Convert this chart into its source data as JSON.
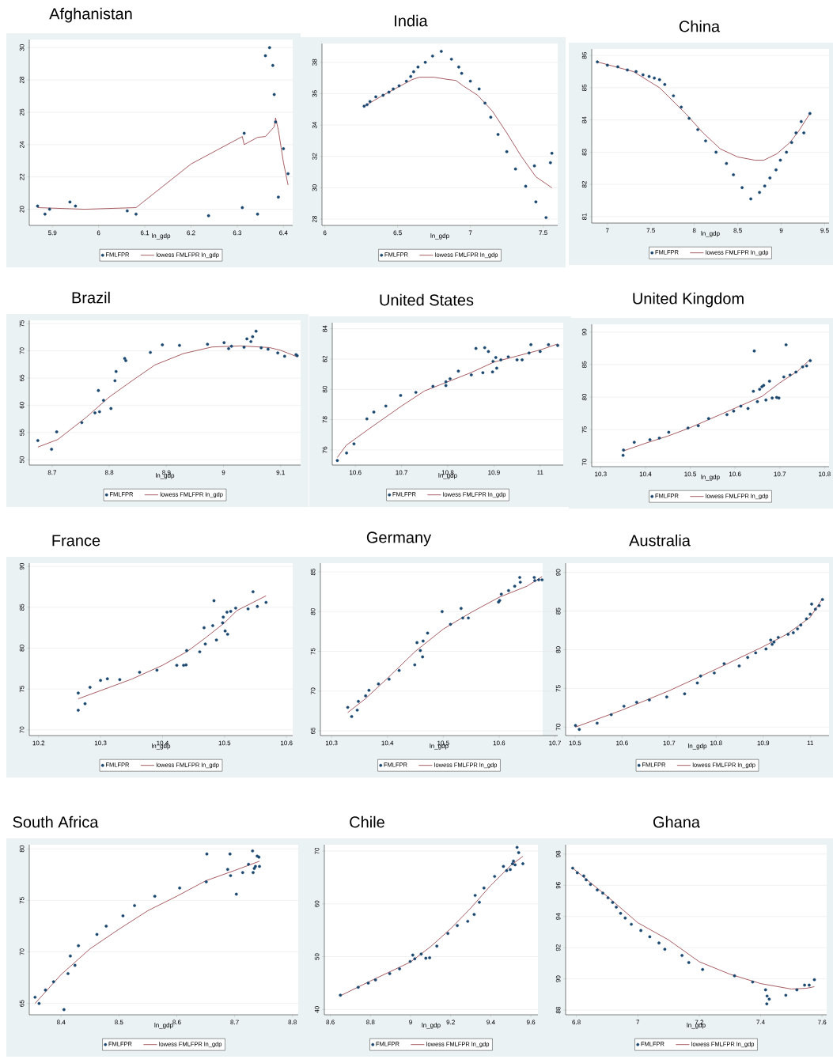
{
  "chart_data": [
    {
      "type": "scatter",
      "title": "Afghanistan",
      "xlabel": "ln_gdp",
      "xlim": [
        5.85,
        6.42
      ],
      "ylim": [
        19,
        30.5
      ],
      "xticks": [
        5.9,
        6,
        6.1,
        6.2,
        6.3,
        6.4
      ],
      "yticks": [
        20,
        22,
        24,
        26,
        28,
        30
      ],
      "grid": "y",
      "legend": "bottom",
      "series": [
        {
          "name": "FMLFPR",
          "type": "scatter",
          "marker": "circle",
          "color": "#1a476f",
          "x": [
            5.868,
            5.884,
            5.894,
            5.938,
            5.95,
            6.062,
            6.081,
            6.238,
            6.311,
            6.315,
            6.344,
            6.361,
            6.37,
            6.377,
            6.38,
            6.383,
            6.389,
            6.4,
            6.41
          ],
          "values": [
            20.2,
            19.7,
            20.0,
            20.45,
            20.2,
            19.9,
            19.7,
            19.6,
            20.1,
            24.7,
            19.7,
            29.5,
            30.0,
            28.9,
            27.1,
            25.4,
            20.75,
            23.75,
            22.2
          ]
        },
        {
          "name": "lowess FMLFPR ln_gdp",
          "type": "line",
          "marker": "none",
          "line_style": "solid",
          "color": "#90353b",
          "x": [
            5.868,
            5.97,
            6.081,
            6.2,
            6.311,
            6.315,
            6.344,
            6.361,
            6.38,
            6.383,
            6.389,
            6.4,
            6.41
          ],
          "values": [
            20.1,
            20.0,
            20.1,
            22.8,
            24.5,
            24.0,
            24.45,
            24.5,
            25.1,
            25.65,
            24.9,
            22.9,
            21.5
          ]
        }
      ]
    },
    {
      "type": "scatter",
      "title": "India",
      "xlabel": "ln_gdp",
      "xlim": [
        5.98,
        7.6
      ],
      "ylim": [
        27.6,
        39.2
      ],
      "xticks": [
        6,
        6.5,
        7,
        7.5
      ],
      "yticks": [
        28,
        30,
        32,
        34,
        36,
        38
      ],
      "grid": "y",
      "legend": "bottom",
      "series": [
        {
          "name": "FMLFPR",
          "type": "scatter",
          "marker": "circle",
          "color": "#1a476f",
          "x": [
            6.27,
            6.29,
            6.31,
            6.35,
            6.4,
            6.44,
            6.47,
            6.51,
            6.56,
            6.59,
            6.61,
            6.64,
            6.69,
            6.74,
            6.8,
            6.87,
            6.92,
            6.94,
            7.0,
            7.06,
            7.1,
            7.14,
            7.19,
            7.25,
            7.31,
            7.38,
            7.44,
            7.45,
            7.52,
            7.55,
            7.56
          ],
          "values": [
            35.2,
            35.3,
            35.5,
            35.8,
            35.9,
            36.1,
            36.3,
            36.5,
            36.8,
            37.1,
            37.4,
            37.7,
            38.0,
            38.4,
            38.7,
            38.2,
            37.7,
            37.3,
            36.8,
            36.3,
            35.4,
            34.5,
            33.4,
            32.3,
            31.2,
            30.1,
            31.4,
            29.1,
            28.1,
            31.6,
            32.2
          ]
        },
        {
          "name": "lowess FMLFPR ln_gdp",
          "type": "line",
          "marker": "none",
          "line_style": "solid",
          "color": "#90353b",
          "x": [
            6.27,
            6.4,
            6.5,
            6.6,
            6.65,
            6.75,
            6.85,
            6.9,
            6.95,
            7.05,
            7.15,
            7.25,
            7.35,
            7.45,
            7.56
          ],
          "values": [
            35.2,
            35.9,
            36.4,
            36.9,
            37.05,
            37.05,
            36.9,
            36.85,
            36.5,
            35.9,
            34.9,
            33.5,
            32.0,
            30.7,
            30.0
          ]
        }
      ]
    },
    {
      "type": "scatter",
      "title": "China",
      "xlabel": "ln_gdp",
      "xlim": [
        6.82,
        9.55
      ],
      "ylim": [
        80.8,
        86.2
      ],
      "xticks": [
        7,
        7.5,
        8,
        8.5,
        9,
        9.5
      ],
      "yticks": [
        81,
        82,
        83,
        84,
        85,
        86
      ],
      "grid": "y",
      "legend": "bottom",
      "series": [
        {
          "name": "FMLFPR",
          "type": "scatter",
          "marker": "circle",
          "color": "#1a476f",
          "x": [
            6.885,
            7.0,
            7.12,
            7.23,
            7.33,
            7.41,
            7.48,
            7.54,
            7.6,
            7.66,
            7.76,
            7.85,
            7.94,
            8.04,
            8.13,
            8.25,
            8.37,
            8.45,
            8.55,
            8.65,
            8.75,
            8.81,
            8.87,
            8.94,
            8.99,
            9.06,
            9.12,
            9.17,
            9.23,
            9.26,
            9.33
          ],
          "values": [
            85.8,
            85.7,
            85.65,
            85.55,
            85.5,
            85.4,
            85.35,
            85.3,
            85.25,
            85.1,
            84.75,
            84.4,
            84.05,
            83.7,
            83.35,
            83.0,
            82.65,
            82.3,
            81.9,
            81.55,
            81.75,
            81.95,
            82.2,
            82.45,
            82.75,
            83.0,
            83.3,
            83.6,
            83.95,
            83.6,
            84.2
          ]
        },
        {
          "name": "lowess FMLFPR ln_gdp",
          "type": "line",
          "marker": "none",
          "line_style": "solid",
          "color": "#90353b",
          "x": [
            6.885,
            7.3,
            7.6,
            7.9,
            8.1,
            8.3,
            8.5,
            8.7,
            8.8,
            8.95,
            9.1,
            9.2,
            9.33
          ],
          "values": [
            85.8,
            85.5,
            85.0,
            84.2,
            83.6,
            83.1,
            82.85,
            82.75,
            82.75,
            82.95,
            83.3,
            83.65,
            84.2
          ]
        }
      ]
    },
    {
      "type": "scatter",
      "title": "Brazil",
      "xlabel": "ln_gdp",
      "xlim": [
        8.66,
        9.135
      ],
      "ylim": [
        49,
        75.6
      ],
      "xticks": [
        8.7,
        8.8,
        8.9,
        9,
        9.1
      ],
      "yticks": [
        50,
        55,
        60,
        65,
        70,
        75
      ],
      "grid": "y",
      "legend": "bottom",
      "series": [
        {
          "name": "FMLFPR",
          "type": "scatter",
          "marker": "circle",
          "color": "#1a476f",
          "x": [
            8.675,
            8.699,
            8.708,
            8.752,
            8.775,
            8.781,
            8.783,
            8.79,
            8.803,
            8.81,
            8.812,
            8.827,
            8.829,
            8.872,
            8.893,
            8.923,
            8.972,
            9.001,
            9.009,
            9.014,
            9.036,
            9.041,
            9.048,
            9.051,
            9.057,
            9.066,
            9.078,
            9.095,
            9.107,
            9.127,
            9.129
          ],
          "values": [
            53.5,
            51.9,
            55.1,
            56.8,
            58.6,
            62.7,
            58.8,
            60.9,
            59.4,
            64.5,
            66.2,
            68.6,
            68.2,
            69.7,
            71.1,
            71.0,
            71.2,
            71.5,
            70.4,
            70.85,
            70.65,
            72.2,
            71.7,
            72.6,
            73.6,
            70.55,
            70.3,
            69.6,
            69.0,
            69.3,
            69.1
          ]
        },
        {
          "name": "lowess FMLFPR ln_gdp",
          "type": "line",
          "marker": "none",
          "line_style": "solid",
          "color": "#90353b",
          "x": [
            8.675,
            8.71,
            8.76,
            8.8,
            8.84,
            8.88,
            8.93,
            8.98,
            9.03,
            9.08,
            9.1,
            9.129
          ],
          "values": [
            52.3,
            53.7,
            57.8,
            61.5,
            64.5,
            67.4,
            69.5,
            70.7,
            70.9,
            70.6,
            70.1,
            68.9
          ]
        }
      ]
    },
    {
      "type": "scatter",
      "title": "United States",
      "xlabel": "ln_gdp",
      "xlim": [
        10.55,
        11.05
      ],
      "ylim": [
        75,
        84.4
      ],
      "xticks": [
        10.6,
        10.7,
        10.8,
        10.9,
        11
      ],
      "yticks": [
        76,
        78,
        80,
        82,
        84
      ],
      "grid": "y",
      "legend": "bottom",
      "series": [
        {
          "name": "FMLFPR",
          "type": "scatter",
          "marker": "circle",
          "color": "#1a476f",
          "x": [
            10.561,
            10.581,
            10.597,
            10.625,
            10.64,
            10.666,
            10.698,
            10.731,
            10.768,
            10.796,
            10.796,
            10.805,
            10.823,
            10.851,
            10.861,
            10.876,
            10.88,
            10.888,
            10.897,
            10.898,
            10.904,
            10.906,
            10.915,
            10.931,
            10.95,
            10.961,
            10.976,
            10.98,
            11.0,
            11.018,
            11.038
          ],
          "values": [
            75.3,
            75.8,
            76.4,
            78.05,
            78.5,
            78.9,
            79.6,
            79.8,
            80.2,
            80.5,
            80.25,
            80.7,
            81.2,
            80.95,
            82.7,
            81.1,
            82.75,
            82.5,
            81.15,
            81.85,
            82.1,
            81.4,
            81.95,
            82.15,
            81.95,
            81.95,
            82.4,
            82.95,
            82.5,
            82.95,
            82.9
          ]
        },
        {
          "name": "lowess FMLFPR ln_gdp",
          "type": "line",
          "marker": "none",
          "line_style": "solid",
          "color": "#90353b",
          "x": [
            10.561,
            10.58,
            10.63,
            10.7,
            10.75,
            10.8,
            10.85,
            10.9,
            10.95,
            11.0,
            11.038
          ],
          "values": [
            75.5,
            76.3,
            77.4,
            78.9,
            79.9,
            80.5,
            81.1,
            81.8,
            82.2,
            82.6,
            83.0
          ]
        }
      ]
    },
    {
      "type": "scatter",
      "title": "United Kingdom",
      "xlabel": "ln_gdp",
      "xlim": [
        10.28,
        10.81
      ],
      "ylim": [
        69.3,
        91.2
      ],
      "xticks": [
        10.3,
        10.4,
        10.5,
        10.6,
        10.7,
        10.8
      ],
      "yticks": [
        70,
        75,
        80,
        85,
        90
      ],
      "grid": "y",
      "legend": "bottom",
      "series": [
        {
          "name": "FMLFPR",
          "type": "scatter",
          "marker": "circle",
          "color": "#1a476f",
          "x": [
            10.35,
            10.351,
            10.375,
            10.41,
            10.431,
            10.452,
            10.495,
            10.518,
            10.541,
            10.582,
            10.597,
            10.613,
            10.629,
            10.641,
            10.643,
            10.65,
            10.655,
            10.66,
            10.664,
            10.669,
            10.677,
            10.683,
            10.693,
            10.698,
            10.709,
            10.714,
            10.723,
            10.736,
            10.751,
            10.76,
            10.768
          ],
          "values": [
            71.05,
            71.85,
            73.05,
            73.45,
            73.7,
            74.6,
            75.25,
            75.6,
            76.7,
            77.3,
            77.85,
            78.6,
            78.25,
            80.9,
            87.1,
            79.3,
            81.2,
            81.6,
            81.8,
            79.55,
            82.45,
            79.85,
            79.95,
            79.85,
            83.1,
            88.05,
            83.4,
            83.85,
            84.65,
            84.8,
            85.6
          ]
        },
        {
          "name": "lowess FMLFPR ln_gdp",
          "type": "line",
          "marker": "none",
          "line_style": "solid",
          "color": "#90353b",
          "x": [
            10.35,
            10.4,
            10.45,
            10.5,
            10.55,
            10.6,
            10.64,
            10.66,
            10.7,
            10.74,
            10.768
          ],
          "values": [
            71.7,
            72.9,
            74.0,
            75.3,
            76.8,
            78.3,
            79.5,
            80.1,
            82.2,
            84.0,
            85.8
          ]
        }
      ]
    },
    {
      "type": "scatter",
      "title": "France",
      "xlabel": "ln_gdp",
      "xlim": [
        10.185,
        10.61
      ],
      "ylim": [
        69.3,
        90.4
      ],
      "xticks": [
        10.2,
        10.3,
        10.4,
        10.5,
        10.6
      ],
      "yticks": [
        70,
        75,
        80,
        85,
        90
      ],
      "grid": "y",
      "legend": "bottom",
      "series": [
        {
          "name": "FMLFPR",
          "type": "scatter",
          "marker": "circle",
          "color": "#1a476f",
          "x": [
            10.264,
            10.264,
            10.275,
            10.283,
            10.3,
            10.311,
            10.331,
            10.363,
            10.391,
            10.423,
            10.434,
            10.438,
            10.439,
            10.46,
            10.467,
            10.469,
            10.481,
            10.483,
            10.487,
            10.497,
            10.498,
            10.501,
            10.505,
            10.504,
            10.51,
            10.518,
            10.538,
            10.546,
            10.553,
            10.567
          ],
          "values": [
            74.5,
            72.4,
            73.2,
            75.2,
            76.05,
            76.25,
            76.15,
            77.05,
            77.3,
            77.9,
            77.9,
            77.95,
            79.7,
            79.55,
            82.5,
            80.5,
            82.75,
            85.8,
            81.0,
            83.1,
            83.8,
            82.1,
            81.7,
            84.4,
            84.5,
            84.9,
            84.8,
            86.9,
            85.1,
            85.6
          ]
        },
        {
          "name": "lowess FMLFPR ln_gdp",
          "type": "line",
          "marker": "none",
          "line_style": "solid",
          "color": "#90353b",
          "x": [
            10.264,
            10.3,
            10.35,
            10.4,
            10.44,
            10.47,
            10.5,
            10.52,
            10.567
          ],
          "values": [
            73.8,
            74.8,
            76.2,
            77.9,
            79.6,
            81.3,
            83.1,
            84.6,
            86.4
          ]
        }
      ]
    },
    {
      "type": "scatter",
      "title": "Germany",
      "xlabel": "ln_gdp",
      "xlim": [
        10.28,
        10.705
      ],
      "ylim": [
        64.4,
        86.1
      ],
      "xticks": [
        10.3,
        10.4,
        10.5,
        10.6,
        10.7
      ],
      "yticks": [
        65,
        70,
        75,
        80,
        85
      ],
      "grid": "y",
      "legend": "bottom",
      "series": [
        {
          "name": "FMLFPR",
          "type": "scatter",
          "marker": "circle",
          "color": "#1a476f",
          "x": [
            10.329,
            10.336,
            10.346,
            10.348,
            10.361,
            10.367,
            10.384,
            10.403,
            10.421,
            10.449,
            10.453,
            10.459,
            10.463,
            10.464,
            10.472,
            10.498,
            10.513,
            10.532,
            10.535,
            10.545,
            10.599,
            10.601,
            10.604,
            10.617,
            10.628,
            10.637,
            10.638,
            10.663,
            10.664,
            10.671,
            10.677
          ],
          "values": [
            67.95,
            66.8,
            67.6,
            68.7,
            69.4,
            70.1,
            70.9,
            71.5,
            72.6,
            73.3,
            76.1,
            75.1,
            74.3,
            76.3,
            77.3,
            80.0,
            78.4,
            80.4,
            79.2,
            79.2,
            81.2,
            81.4,
            82.2,
            82.65,
            83.2,
            84.3,
            83.7,
            84.3,
            83.9,
            84.0,
            84.0
          ]
        },
        {
          "name": "lowess FMLFPR ln_gdp",
          "type": "line",
          "marker": "none",
          "line_style": "solid",
          "color": "#90353b",
          "x": [
            10.329,
            10.36,
            10.4,
            10.45,
            10.5,
            10.55,
            10.6,
            10.65,
            10.677
          ],
          "values": [
            67.3,
            69.0,
            71.6,
            75.0,
            77.8,
            79.9,
            81.8,
            83.2,
            84.4
          ]
        }
      ]
    },
    {
      "type": "scatter",
      "title": "Australia",
      "xlabel": "ln_gdp",
      "xlim": [
        10.48,
        11.04
      ],
      "ylim": [
        68.9,
        91.2
      ],
      "xticks": [
        10.5,
        10.6,
        10.7,
        10.8,
        10.9,
        11
      ],
      "yticks": [
        70,
        75,
        80,
        85,
        90
      ],
      "grid": "y",
      "legend": "bottom",
      "series": [
        {
          "name": "FMLFPR",
          "type": "scatter",
          "marker": "circle",
          "color": "#1a476f",
          "x": [
            10.501,
            10.509,
            10.547,
            10.577,
            10.604,
            10.631,
            10.658,
            10.695,
            10.733,
            10.76,
            10.767,
            10.796,
            10.817,
            10.849,
            10.867,
            10.884,
            10.906,
            10.916,
            10.919,
            10.923,
            10.932,
            10.953,
            10.964,
            10.973,
            10.98,
            10.992,
            11.0,
            11.003,
            11.011,
            11.019,
            11.026
          ],
          "values": [
            70.2,
            69.7,
            70.5,
            71.6,
            72.7,
            73.2,
            73.5,
            73.9,
            74.3,
            75.7,
            76.6,
            77.0,
            78.2,
            77.9,
            79.0,
            79.6,
            80.1,
            81.25,
            80.7,
            81.0,
            81.6,
            82.0,
            82.2,
            82.7,
            83.2,
            84.0,
            84.6,
            85.9,
            85.25,
            85.7,
            86.5
          ]
        },
        {
          "name": "lowess FMLFPR ln_gdp",
          "type": "line",
          "marker": "none",
          "line_style": "solid",
          "color": "#90353b",
          "x": [
            10.501,
            10.6,
            10.7,
            10.8,
            10.9,
            10.95,
            11.0,
            11.026
          ],
          "values": [
            70.0,
            72.2,
            74.7,
            77.5,
            80.4,
            82.0,
            84.2,
            86.6
          ]
        }
      ]
    },
    {
      "type": "scatter",
      "title": "South Africa",
      "xlabel": "ln_gdp",
      "xlim": [
        8.345,
        8.81
      ],
      "ylim": [
        63.9,
        80.4
      ],
      "xticks": [
        8.4,
        8.5,
        8.6,
        8.7,
        8.8
      ],
      "yticks": [
        65,
        70,
        75,
        80
      ],
      "grid": "y",
      "legend": "bottom",
      "series": [
        {
          "name": "FMLFPR",
          "type": "scatter",
          "marker": "circle",
          "color": "#1a476f",
          "x": [
            8.355,
            8.362,
            8.373,
            8.387,
            8.405,
            8.412,
            8.416,
            8.424,
            8.43,
            8.462,
            8.478,
            8.507,
            8.527,
            8.562,
            8.605,
            8.651,
            8.652,
            8.688,
            8.692,
            8.693,
            8.703,
            8.714,
            8.724,
            8.731,
            8.732,
            8.734,
            8.736,
            8.739,
            8.742,
            8.743
          ],
          "values": [
            65.6,
            65.0,
            66.3,
            67.1,
            64.4,
            67.9,
            69.6,
            68.7,
            70.6,
            71.7,
            72.5,
            73.5,
            74.5,
            75.4,
            76.2,
            76.8,
            79.5,
            78.0,
            79.5,
            77.4,
            75.6,
            77.7,
            78.5,
            79.8,
            77.7,
            78.1,
            78.3,
            79.3,
            79.2,
            78.3
          ]
        },
        {
          "name": "lowess FMLFPR ln_gdp",
          "type": "line",
          "marker": "none",
          "line_style": "solid",
          "color": "#90353b",
          "x": [
            8.355,
            8.4,
            8.45,
            8.5,
            8.55,
            8.6,
            8.65,
            8.7,
            8.743
          ],
          "values": [
            65.0,
            67.8,
            70.3,
            72.2,
            74.0,
            75.4,
            76.9,
            77.9,
            78.8
          ]
        }
      ]
    },
    {
      "type": "scatter",
      "title": "Chile",
      "xlabel": "ln_gdp",
      "xlim": [
        8.57,
        9.635
      ],
      "ylim": [
        39,
        71.2
      ],
      "xticks": [
        8.6,
        8.8,
        9,
        9.2,
        9.4,
        9.6
      ],
      "yticks": [
        40,
        50,
        60,
        70
      ],
      "grid": "y",
      "legend": "bottom",
      "series": [
        {
          "name": "FMLFPR",
          "type": "scatter",
          "marker": "circle",
          "color": "#1a476f",
          "x": [
            8.65,
            8.739,
            8.789,
            8.825,
            8.896,
            8.945,
            8.998,
            9.011,
            9.021,
            9.053,
            9.076,
            9.095,
            9.131,
            9.186,
            9.233,
            9.285,
            9.317,
            9.322,
            9.343,
            9.366,
            9.419,
            9.463,
            9.479,
            9.497,
            9.508,
            9.513,
            9.521,
            9.531,
            9.539,
            9.56
          ],
          "values": [
            42.7,
            44.2,
            45.0,
            45.6,
            46.8,
            47.7,
            49.1,
            50.3,
            49.6,
            50.5,
            49.7,
            49.8,
            52.0,
            54.4,
            55.9,
            56.7,
            58.0,
            61.6,
            60.3,
            63.0,
            65.2,
            67.1,
            66.3,
            66.5,
            67.6,
            68.1,
            67.4,
            70.7,
            69.7,
            67.6
          ]
        },
        {
          "name": "lowess FMLFPR ln_gdp",
          "type": "line",
          "marker": "none",
          "line_style": "solid",
          "color": "#90353b",
          "x": [
            8.65,
            8.8,
            9.0,
            9.1,
            9.2,
            9.3,
            9.4,
            9.5,
            9.56
          ],
          "values": [
            42.6,
            45.4,
            49.0,
            51.9,
            55.3,
            59.2,
            63.5,
            67.3,
            69.0
          ]
        }
      ]
    },
    {
      "type": "scatter",
      "title": "Ghana",
      "xlabel": "ln_gdp",
      "xlim": [
        6.765,
        7.615
      ],
      "ylim": [
        87.7,
        98.6
      ],
      "xticks": [
        6.8,
        7,
        7.2,
        7.4,
        7.6
      ],
      "yticks": [
        88,
        90,
        92,
        94,
        96,
        98
      ],
      "grid": "y",
      "legend": "bottom",
      "series": [
        {
          "name": "FMLFPR",
          "type": "scatter",
          "marker": "circle",
          "color": "#1a476f",
          "x": [
            6.788,
            6.803,
            6.824,
            6.832,
            6.846,
            6.868,
            6.886,
            6.903,
            6.918,
            6.93,
            6.944,
            6.959,
            6.979,
            7.01,
            7.039,
            7.069,
            7.088,
            7.144,
            7.166,
            7.211,
            7.315,
            7.374,
            7.416,
            7.421,
            7.428,
            7.42,
            7.482,
            7.518,
            7.543,
            7.558,
            7.575
          ],
          "values": [
            97.1,
            96.8,
            96.6,
            96.35,
            96.05,
            95.7,
            95.5,
            95.2,
            94.9,
            94.6,
            94.2,
            93.9,
            93.5,
            93.1,
            92.7,
            92.3,
            91.9,
            91.5,
            91.05,
            90.6,
            90.2,
            89.8,
            89.3,
            88.9,
            88.7,
            88.4,
            88.95,
            89.3,
            89.6,
            89.6,
            89.95
          ]
        },
        {
          "name": "lowess FMLFPR ln_gdp",
          "type": "line",
          "marker": "none",
          "line_style": "solid",
          "color": "#90353b",
          "x": [
            6.788,
            6.9,
            7.0,
            7.1,
            7.2,
            7.3,
            7.4,
            7.5,
            7.55,
            7.575
          ],
          "values": [
            97.1,
            95.3,
            93.6,
            92.5,
            91.1,
            90.3,
            89.7,
            89.35,
            89.4,
            89.5
          ]
        }
      ]
    }
  ]
}
